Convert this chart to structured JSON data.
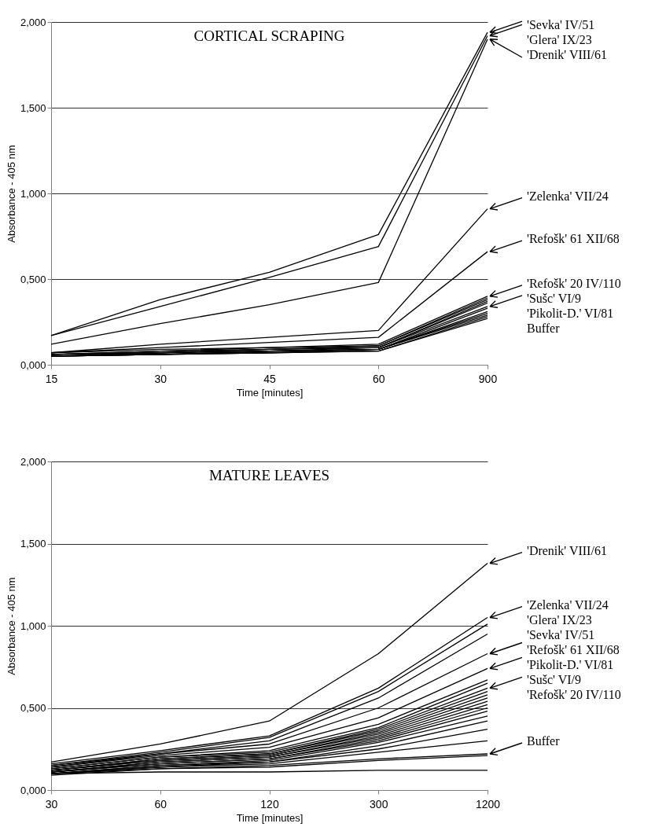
{
  "chart_data": [
    {
      "type": "line",
      "title": "CORTICAL SCRAPING",
      "xlabel": "Time [minutes]",
      "ylabel": "Absorbance - 405 nm",
      "categories": [
        "15",
        "30",
        "45",
        "60",
        "900"
      ],
      "ylim": [
        0,
        2
      ],
      "yticks": [
        {
          "value": 0,
          "label": "0,000"
        },
        {
          "value": 0.5,
          "label": "0,500"
        },
        {
          "value": 1,
          "label": "1,000"
        },
        {
          "value": 1.5,
          "label": "1,500"
        },
        {
          "value": 2,
          "label": "2,000"
        }
      ],
      "grid": "y",
      "series": [
        {
          "color": "#000000",
          "values": [
            0.17,
            0.38,
            0.54,
            0.76,
            1.94
          ]
        },
        {
          "color": "#000000",
          "values": [
            0.17,
            0.34,
            0.51,
            0.69,
            1.92
          ]
        },
        {
          "color": "#000000",
          "values": [
            0.12,
            0.24,
            0.35,
            0.48,
            1.9
          ]
        },
        {
          "color": "#000000",
          "values": [
            0.07,
            0.12,
            0.16,
            0.2,
            0.91
          ]
        },
        {
          "color": "#000000",
          "values": [
            0.07,
            0.1,
            0.13,
            0.16,
            0.66
          ]
        },
        {
          "color": "#000000",
          "values": [
            0.07,
            0.09,
            0.1,
            0.12,
            0.4
          ]
        },
        {
          "color": "#000000",
          "values": [
            0.06,
            0.08,
            0.1,
            0.11,
            0.39
          ]
        },
        {
          "color": "#000000",
          "values": [
            0.06,
            0.08,
            0.09,
            0.11,
            0.38
          ]
        },
        {
          "color": "#000000",
          "values": [
            0.06,
            0.07,
            0.09,
            0.1,
            0.37
          ]
        },
        {
          "color": "#000000",
          "values": [
            0.06,
            0.07,
            0.09,
            0.1,
            0.36
          ]
        },
        {
          "color": "#000000",
          "values": [
            0.05,
            0.07,
            0.08,
            0.1,
            0.34
          ]
        },
        {
          "color": "#000000",
          "values": [
            0.05,
            0.07,
            0.08,
            0.09,
            0.33
          ]
        },
        {
          "color": "#000000",
          "values": [
            0.05,
            0.06,
            0.08,
            0.09,
            0.31
          ]
        },
        {
          "color": "#000000",
          "values": [
            0.05,
            0.06,
            0.08,
            0.09,
            0.3
          ]
        },
        {
          "color": "#000000",
          "values": [
            0.05,
            0.06,
            0.07,
            0.09,
            0.29
          ]
        },
        {
          "color": "#000000",
          "values": [
            0.05,
            0.06,
            0.07,
            0.08,
            0.28
          ]
        },
        {
          "color": "#000000",
          "values": [
            0.05,
            0.06,
            0.07,
            0.08,
            0.27
          ]
        }
      ],
      "annotations": [
        {
          "text": "'Sevka' IV/51",
          "x": "900",
          "y": 1.94
        },
        {
          "text": "'Glera' IX/23",
          "x": "900",
          "y": 1.92
        },
        {
          "text": "'Drenik' VIII/61",
          "x": "900",
          "y": 1.9
        },
        {
          "text": "'Zelenka' VII/24",
          "x": "900",
          "y": 0.91
        },
        {
          "text": "'Refošk' 61 XII/68",
          "x": "900",
          "y": 0.66
        },
        {
          "text": "'Refošk' 20 IV/110",
          "x": "900",
          "y": 0.4
        },
        "'Sušc' VI/9",
        {
          "text": "'Pikolit-D.' VI/81",
          "x": "900",
          "y": 0.34
        },
        "Buffer"
      ]
    },
    {
      "type": "line",
      "title": "MATURE LEAVES",
      "xlabel": "Time [minutes]",
      "ylabel": "Absorbance - 405 nm",
      "categories": [
        "30",
        "60",
        "120",
        "300",
        "1200"
      ],
      "ylim": [
        0,
        2
      ],
      "yticks": [
        {
          "value": 0,
          "label": "0,000"
        },
        {
          "value": 0.5,
          "label": "0,500"
        },
        {
          "value": 1,
          "label": "1,000"
        },
        {
          "value": 1.5,
          "label": "1,500"
        },
        {
          "value": 2,
          "label": "2,000"
        }
      ],
      "grid": "y",
      "series": [
        {
          "color": "#000000",
          "values": [
            0.17,
            0.28,
            0.42,
            0.83,
            1.38
          ]
        },
        {
          "color": "#000000",
          "values": [
            0.16,
            0.24,
            0.33,
            0.62,
            1.05
          ]
        },
        {
          "color": "#000000",
          "values": [
            0.15,
            0.23,
            0.32,
            0.6,
            1.01
          ]
        },
        {
          "color": "#000000",
          "values": [
            0.15,
            0.22,
            0.3,
            0.56,
            0.95
          ]
        },
        {
          "color": "#000000",
          "values": [
            0.14,
            0.22,
            0.28,
            0.5,
            0.83
          ]
        },
        {
          "color": "#000000",
          "values": [
            0.14,
            0.21,
            0.26,
            0.44,
            0.74
          ]
        },
        {
          "color": "#000000",
          "values": [
            0.13,
            0.2,
            0.24,
            0.4,
            0.67
          ]
        },
        {
          "color": "#000000",
          "values": [
            0.13,
            0.2,
            0.23,
            0.38,
            0.65
          ]
        },
        {
          "color": "#000000",
          "values": [
            0.12,
            0.19,
            0.22,
            0.37,
            0.62
          ]
        },
        {
          "color": "#000000",
          "values": [
            0.12,
            0.19,
            0.22,
            0.36,
            0.6
          ]
        },
        {
          "color": "#000000",
          "values": [
            0.12,
            0.18,
            0.21,
            0.35,
            0.58
          ]
        },
        {
          "color": "#000000",
          "values": [
            0.12,
            0.18,
            0.21,
            0.34,
            0.56
          ]
        },
        {
          "color": "#000000",
          "values": [
            0.11,
            0.17,
            0.2,
            0.33,
            0.54
          ]
        },
        {
          "color": "#000000",
          "values": [
            0.11,
            0.17,
            0.2,
            0.32,
            0.52
          ]
        },
        {
          "color": "#000000",
          "values": [
            0.11,
            0.16,
            0.19,
            0.31,
            0.5
          ]
        },
        {
          "color": "#000000",
          "values": [
            0.11,
            0.16,
            0.19,
            0.3,
            0.48
          ]
        },
        {
          "color": "#000000",
          "values": [
            0.1,
            0.15,
            0.18,
            0.29,
            0.45
          ]
        },
        {
          "color": "#000000",
          "values": [
            0.1,
            0.15,
            0.17,
            0.27,
            0.42
          ]
        },
        {
          "color": "#000000",
          "values": [
            0.1,
            0.14,
            0.17,
            0.25,
            0.37
          ]
        },
        {
          "color": "#000000",
          "values": [
            0.1,
            0.14,
            0.16,
            0.23,
            0.3
          ]
        },
        {
          "color": "#000000",
          "values": [
            0.1,
            0.13,
            0.15,
            0.19,
            0.22
          ]
        },
        {
          "color": "#000000",
          "values": [
            0.09,
            0.13,
            0.14,
            0.18,
            0.21
          ]
        },
        {
          "color": "#000000",
          "values": [
            0.1,
            0.11,
            0.11,
            0.12,
            0.12
          ]
        }
      ],
      "annotations": [
        {
          "text": "'Drenik' VIII/61",
          "x": "1200",
          "y": 1.38
        },
        {
          "text": "'Zelenka' VII/24",
          "x": "1200",
          "y": 1.05
        },
        "'Glera' IX/23",
        "'Sevka' IV/51",
        {
          "text": "'Refošk' 61 XII/68",
          "x": "1200",
          "y": 0.83
        },
        {
          "text": "'Pikolit-D.' VI/81",
          "x": "1200",
          "y": 0.74
        },
        {
          "text": "'Sušc' VI/9",
          "x": "1200",
          "y": 0.62
        },
        "'Refošk' 20 IV/110",
        {
          "text": "Buffer",
          "x": "1200",
          "y": 0.22
        }
      ]
    }
  ]
}
